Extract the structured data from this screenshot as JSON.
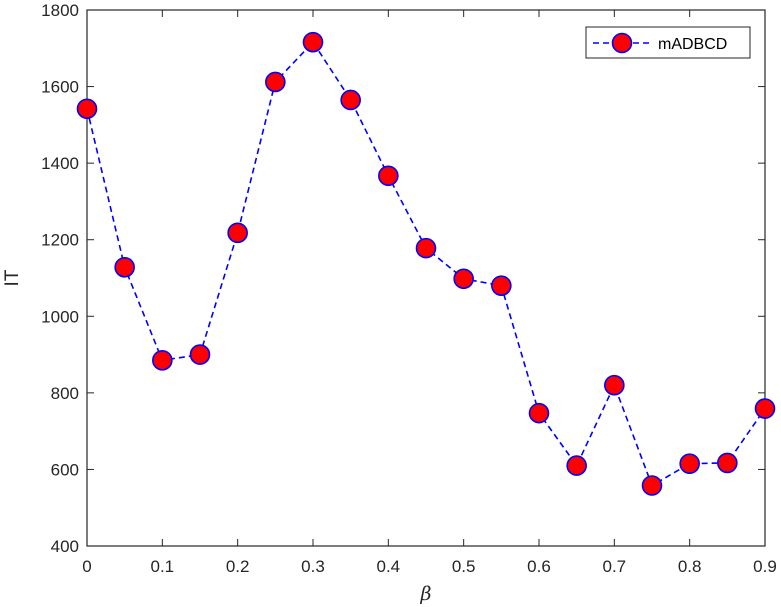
{
  "chart_data": {
    "type": "line",
    "title": "",
    "xlabel": "β",
    "ylabel": "IT",
    "xlim": [
      0,
      0.9
    ],
    "ylim": [
      400,
      1800
    ],
    "xticks": [
      "0",
      "0.1",
      "0.2",
      "0.3",
      "0.4",
      "0.5",
      "0.6",
      "0.7",
      "0.8",
      "0.9"
    ],
    "yticks": [
      "400",
      "600",
      "800",
      "1000",
      "1200",
      "1400",
      "1600",
      "1800"
    ],
    "grid": false,
    "legend": {
      "position": "top-right",
      "entries": [
        "mADBCD"
      ]
    },
    "series": [
      {
        "name": "mADBCD",
        "line_style": "dashed",
        "line_color": "#0000FF",
        "marker": "circle",
        "marker_fill": "#FF0000",
        "marker_edge": "#0000FF",
        "x": [
          0,
          0.05,
          0.1,
          0.15,
          0.2,
          0.25,
          0.3,
          0.35,
          0.4,
          0.45,
          0.5,
          0.55,
          0.6,
          0.65,
          0.7,
          0.75,
          0.8,
          0.85,
          0.9
        ],
        "y": [
          1542,
          1128,
          885,
          900,
          1218,
          1612,
          1716,
          1565,
          1367,
          1178,
          1098,
          1080,
          747,
          610,
          820,
          558,
          615,
          617,
          759
        ]
      }
    ]
  }
}
